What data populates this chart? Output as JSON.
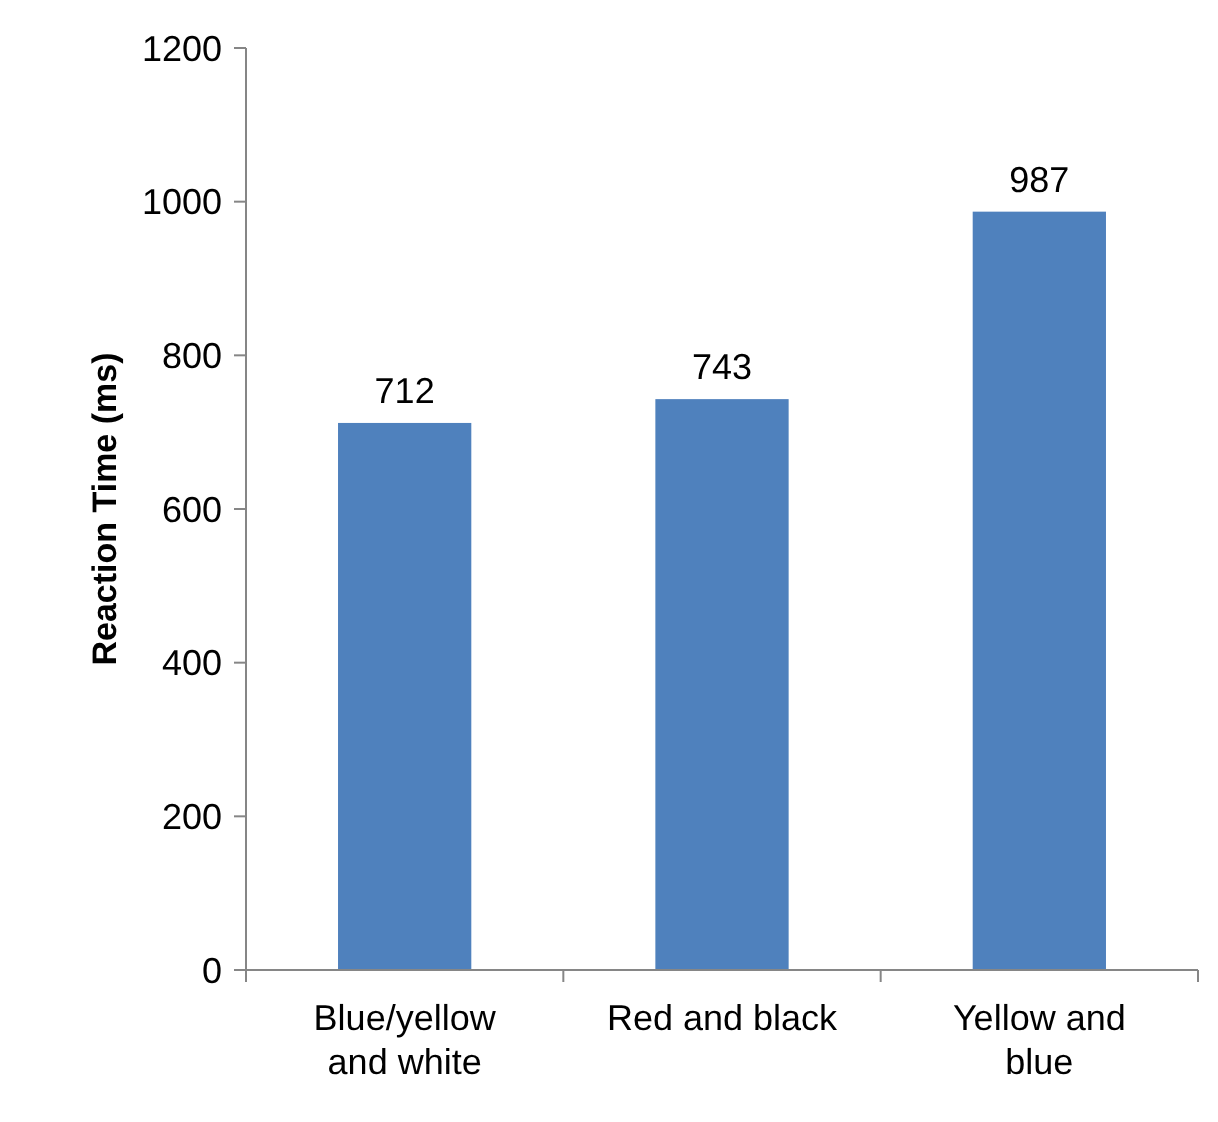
{
  "chart_data": {
    "type": "bar",
    "ylabel": "Reaction Time (ms)",
    "categories": [
      "Blue/yellow and white",
      "Red and black",
      "Yellow and blue"
    ],
    "values": [
      712,
      743,
      987
    ],
    "color": "#4f81bd",
    "data_labels": true,
    "ylim": [
      0,
      1200
    ],
    "yticks": [
      0,
      200,
      400,
      600,
      800,
      1000,
      1200
    ],
    "grid": false
  }
}
